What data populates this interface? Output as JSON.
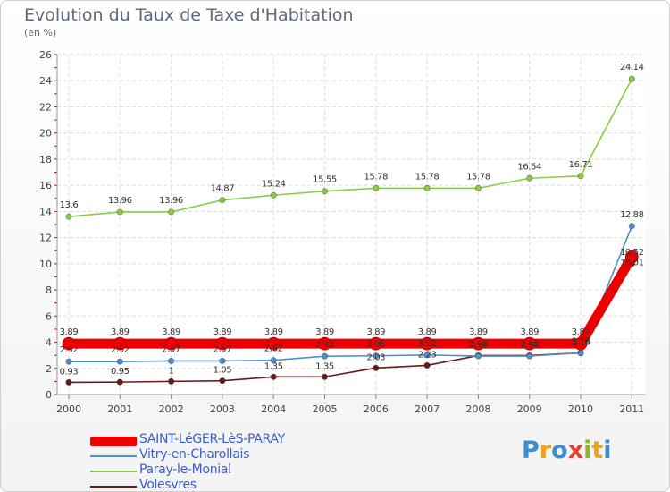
{
  "chart_data": {
    "type": "line",
    "title": "Evolution du Taux de Taxe d'Habitation",
    "subtitle": "(en %)",
    "xlabel": "",
    "ylabel": "",
    "categories": [
      "2000",
      "2001",
      "2002",
      "2003",
      "2004",
      "2005",
      "2006",
      "2007",
      "2008",
      "2009",
      "2010",
      "2011"
    ],
    "ylim": [
      0,
      26
    ],
    "yticks": [
      "0",
      "2",
      "4",
      "6",
      "8",
      "10",
      "12",
      "14",
      "16",
      "18",
      "20",
      "22",
      "24",
      "26"
    ],
    "grid": true,
    "legend_position": "bottom-left",
    "series": [
      {
        "name": "SAINT-LéGER-LèS-PARAY",
        "color": "#ee0000",
        "values": [
          3.89,
          3.89,
          3.89,
          3.89,
          3.89,
          3.89,
          3.89,
          3.89,
          3.89,
          3.89,
          3.89,
          10.52
        ],
        "labels": [
          "3.89",
          "3.89",
          "3.89",
          "3.89",
          "3.89",
          "3.89",
          "3.89",
          "3.89",
          "3.89",
          "3.89",
          "3.89",
          "10.52"
        ]
      },
      {
        "name": "Vitry-en-Charollais",
        "color": "#4f8ecf",
        "values": [
          2.52,
          2.52,
          2.57,
          2.57,
          2.62,
          2.93,
          2.96,
          3.02,
          2.94,
          2.94,
          3.18,
          12.88
        ],
        "labels": [
          "2.52",
          "2.52",
          "2.57",
          "2.57",
          "2.62",
          "2.93",
          "2.96",
          "3.02",
          "2.94",
          "2.94",
          "3.18",
          "12.88"
        ]
      },
      {
        "name": "Paray-le-Monial",
        "color": "#88cc44",
        "values": [
          13.6,
          13.96,
          13.96,
          14.87,
          15.24,
          15.55,
          15.78,
          15.78,
          15.78,
          16.54,
          16.71,
          24.14
        ],
        "labels": [
          "13.6",
          "13.96",
          "13.96",
          "14.87",
          "15.24",
          "15.55",
          "15.78",
          "15.78",
          "15.78",
          "16.54",
          "16.71",
          "24.14"
        ]
      },
      {
        "name": "Volesvres",
        "color": "#6b1a1a",
        "values": [
          0.93,
          0.95,
          1,
          1.05,
          1.35,
          1.35,
          2.03,
          2.23,
          2.98,
          2.98,
          3.18,
          10.01
        ],
        "labels": [
          "0.93",
          "0.95",
          "1",
          "1.05",
          "1.35",
          "1.35",
          "2.03",
          "2.23",
          "2.98",
          "2.98",
          "3.18",
          "10.01"
        ]
      }
    ]
  },
  "legend": {
    "items": [
      "SAINT-LéGER-LèS-PARAY",
      "Vitry-en-Charollais",
      "Paray-le-Monial",
      "Volesvres"
    ]
  },
  "logo": {
    "letters": [
      "P",
      "r",
      "o",
      "x",
      "i",
      "t",
      "i"
    ],
    "colors": [
      "#3b8fd1",
      "#f0a020",
      "#3b8fd1",
      "#e6402a",
      "#88bb22",
      "#f0a020",
      "#3b8fd1"
    ]
  }
}
